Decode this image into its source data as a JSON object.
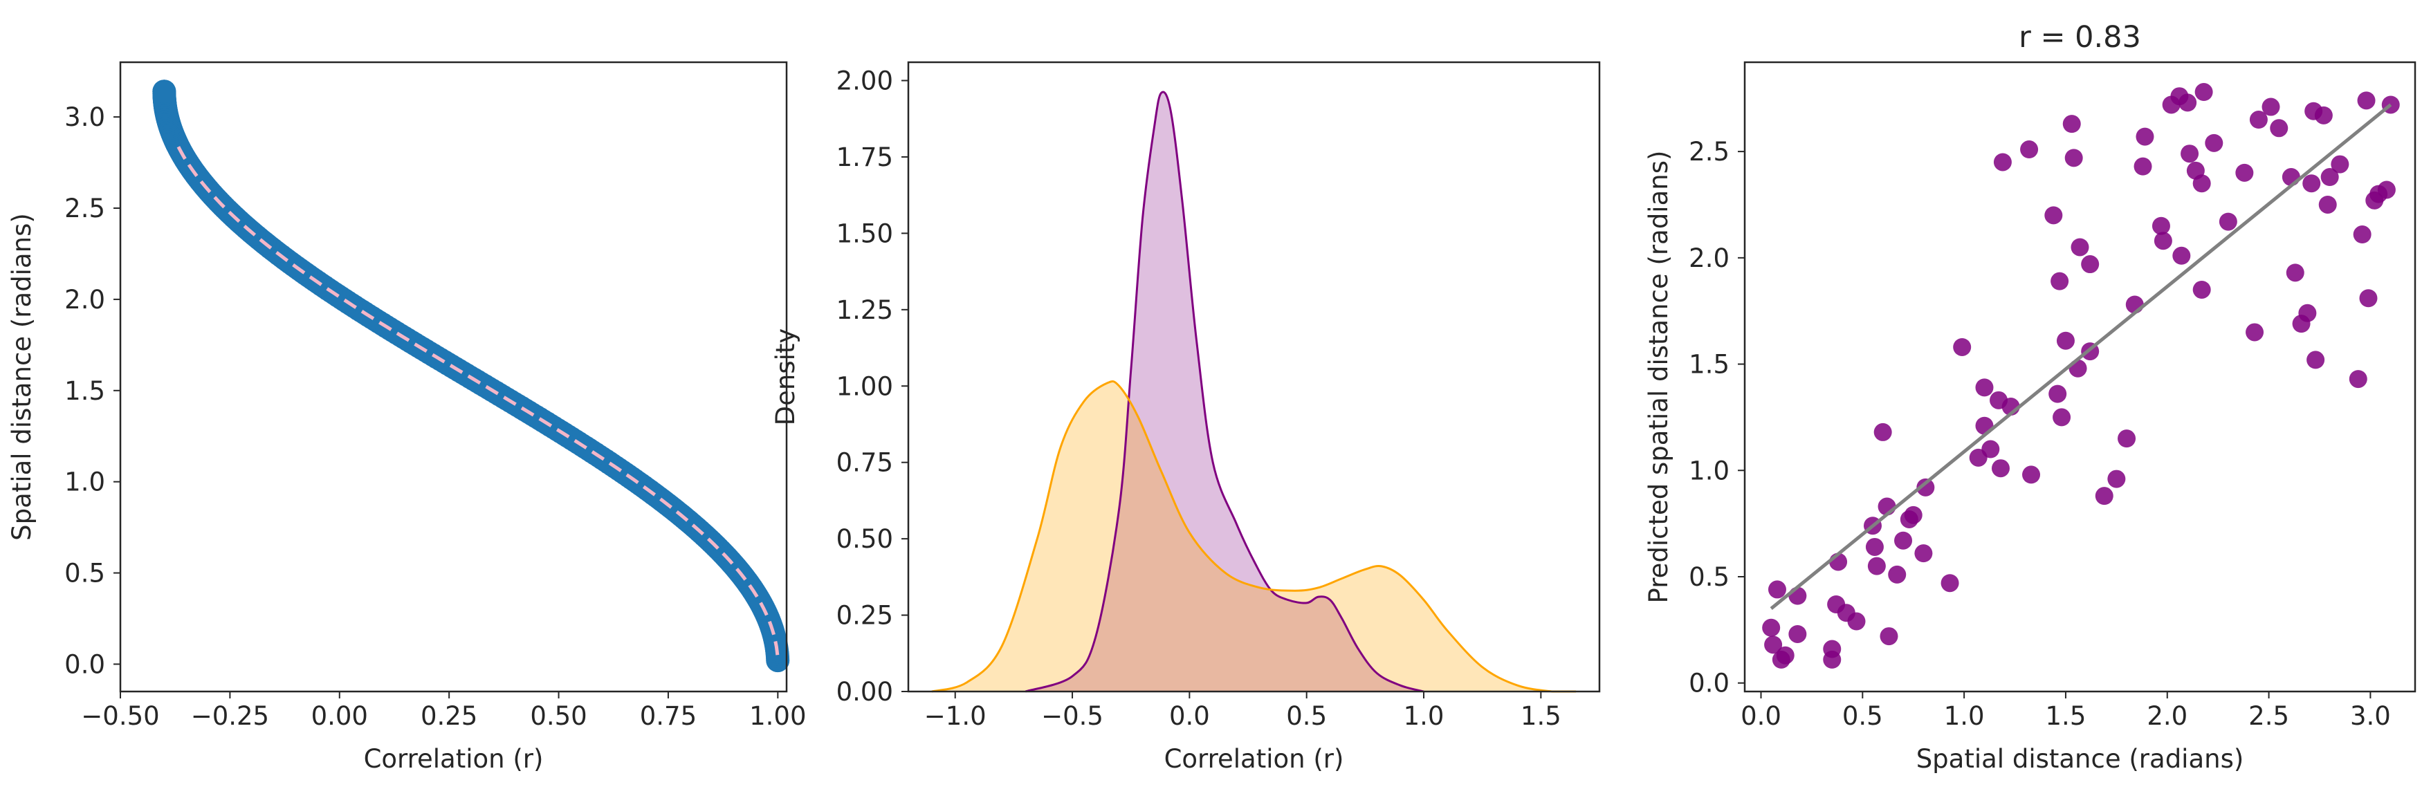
{
  "chart_data": [
    {
      "type": "scatter",
      "xlabel": "Correlation (r)",
      "ylabel": "Spatial distance (radians)",
      "xlim": [
        -0.5,
        1.02
      ],
      "ylim": [
        -0.15,
        3.3
      ],
      "xticks": [
        -0.5,
        -0.25,
        0.0,
        0.25,
        0.5,
        0.75,
        1.0
      ],
      "xtick_labels": [
        "−0.50",
        "−0.25",
        "0.00",
        "0.25",
        "0.50",
        "0.75",
        "1.00"
      ],
      "yticks": [
        0.0,
        0.5,
        1.0,
        1.5,
        2.0,
        2.5,
        3.0
      ],
      "ytick_labels": [
        "0.0",
        "0.5",
        "1.0",
        "1.5",
        "2.0",
        "2.5",
        "3.0"
      ],
      "grid": false,
      "series": [
        {
          "kind": "scatter",
          "color": "#1f77b4",
          "relation": "d = arccos(r) with r = cos(d) * 0.7 + 0.3",
          "d_range": [
            0.02,
            3.14
          ]
        },
        {
          "kind": "dashed-line",
          "color": "#f4b6c8",
          "relation": "d = arccos(r)",
          "d_range": [
            0.05,
            2.85
          ]
        }
      ]
    },
    {
      "type": "area",
      "xlabel": "Correlation (r)",
      "ylabel": "Density",
      "xlim": [
        -1.2,
        1.75
      ],
      "ylim": [
        0,
        2.06
      ],
      "xticks": [
        -1.0,
        -0.5,
        0.0,
        0.5,
        1.0,
        1.5
      ],
      "xtick_labels": [
        "−1.0",
        "−0.5",
        "0.0",
        "0.5",
        "1.0",
        "1.5"
      ],
      "yticks": [
        0.0,
        0.25,
        0.5,
        0.75,
        1.0,
        1.25,
        1.5,
        1.75,
        2.0
      ],
      "ytick_labels": [
        "0.00",
        "0.25",
        "0.50",
        "0.75",
        "1.00",
        "1.25",
        "1.50",
        "1.75",
        "2.00"
      ],
      "grid": false,
      "series": [
        {
          "color": "#800080",
          "fill": "#800080",
          "fill_opacity": 0.25,
          "x": [
            -0.7,
            -0.5,
            -0.4,
            -0.3,
            -0.25,
            -0.2,
            -0.15,
            -0.12,
            -0.08,
            -0.03,
            0.03,
            0.1,
            0.2,
            0.28,
            0.35,
            0.42,
            0.5,
            0.55,
            0.6,
            0.65,
            0.72,
            0.8,
            0.9,
            1.0
          ],
          "y": [
            0.0,
            0.05,
            0.18,
            0.6,
            1.05,
            1.55,
            1.85,
            1.96,
            1.9,
            1.6,
            1.15,
            0.75,
            0.55,
            0.42,
            0.33,
            0.3,
            0.29,
            0.31,
            0.3,
            0.24,
            0.14,
            0.06,
            0.02,
            0.0
          ]
        },
        {
          "color": "#ffa500",
          "fill": "#ffa500",
          "fill_opacity": 0.28,
          "x": [
            -1.1,
            -0.95,
            -0.8,
            -0.65,
            -0.55,
            -0.45,
            -0.35,
            -0.3,
            -0.22,
            -0.12,
            0.0,
            0.15,
            0.3,
            0.45,
            0.55,
            0.65,
            0.75,
            0.82,
            0.9,
            1.0,
            1.1,
            1.25,
            1.4,
            1.55,
            1.65
          ],
          "y": [
            0.0,
            0.03,
            0.15,
            0.5,
            0.8,
            0.95,
            1.01,
            1.0,
            0.9,
            0.72,
            0.52,
            0.39,
            0.34,
            0.33,
            0.34,
            0.37,
            0.4,
            0.41,
            0.38,
            0.3,
            0.2,
            0.08,
            0.02,
            0.0,
            0.0
          ]
        }
      ]
    },
    {
      "type": "scatter",
      "title": "r = 0.83",
      "xlabel": "Spatial distance (radians)",
      "ylabel": "Predicted spatial distance (radians)",
      "xlim": [
        -0.08,
        3.22
      ],
      "ylim": [
        -0.04,
        2.92
      ],
      "xticks": [
        0.0,
        0.5,
        1.0,
        1.5,
        2.0,
        2.5,
        3.0
      ],
      "xtick_labels": [
        "0.0",
        "0.5",
        "1.0",
        "1.5",
        "2.0",
        "2.5",
        "3.0"
      ],
      "yticks": [
        0.0,
        0.5,
        1.0,
        1.5,
        2.0,
        2.5
      ],
      "ytick_labels": [
        "0.0",
        "0.5",
        "1.0",
        "1.5",
        "2.0",
        "2.5"
      ],
      "grid": false,
      "point_color": "#800080",
      "line_color": "#808080",
      "fit_line": {
        "x": [
          0.05,
          3.1
        ],
        "y": [
          0.35,
          2.72
        ]
      },
      "points": [
        [
          0.05,
          0.26
        ],
        [
          0.06,
          0.18
        ],
        [
          0.08,
          0.44
        ],
        [
          0.1,
          0.11
        ],
        [
          0.12,
          0.13
        ],
        [
          0.18,
          0.41
        ],
        [
          0.18,
          0.23
        ],
        [
          0.35,
          0.16
        ],
        [
          0.35,
          0.11
        ],
        [
          0.37,
          0.37
        ],
        [
          0.38,
          0.57
        ],
        [
          0.42,
          0.33
        ],
        [
          0.47,
          0.29
        ],
        [
          0.55,
          0.74
        ],
        [
          0.56,
          0.64
        ],
        [
          0.57,
          0.55
        ],
        [
          0.6,
          1.18
        ],
        [
          0.62,
          0.83
        ],
        [
          0.63,
          0.22
        ],
        [
          0.67,
          0.51
        ],
        [
          0.7,
          0.67
        ],
        [
          0.73,
          0.77
        ],
        [
          0.75,
          0.79
        ],
        [
          0.8,
          0.61
        ],
        [
          0.81,
          0.92
        ],
        [
          0.93,
          0.47
        ],
        [
          0.99,
          1.58
        ],
        [
          1.07,
          1.06
        ],
        [
          1.1,
          1.39
        ],
        [
          1.1,
          1.21
        ],
        [
          1.13,
          1.1
        ],
        [
          1.17,
          1.33
        ],
        [
          1.18,
          1.01
        ],
        [
          1.19,
          2.45
        ],
        [
          1.23,
          1.3
        ],
        [
          1.32,
          2.51
        ],
        [
          1.33,
          0.98
        ],
        [
          1.44,
          2.2
        ],
        [
          1.46,
          1.36
        ],
        [
          1.47,
          1.89
        ],
        [
          1.48,
          1.25
        ],
        [
          1.5,
          1.61
        ],
        [
          1.53,
          2.63
        ],
        [
          1.54,
          2.47
        ],
        [
          1.56,
          1.48
        ],
        [
          1.57,
          2.05
        ],
        [
          1.62,
          1.97
        ],
        [
          1.62,
          1.56
        ],
        [
          1.69,
          0.88
        ],
        [
          1.75,
          0.96
        ],
        [
          1.8,
          1.15
        ],
        [
          1.84,
          1.78
        ],
        [
          1.88,
          2.43
        ],
        [
          1.89,
          2.57
        ],
        [
          1.97,
          2.15
        ],
        [
          1.98,
          2.08
        ],
        [
          2.02,
          2.72
        ],
        [
          2.06,
          2.76
        ],
        [
          2.07,
          2.01
        ],
        [
          2.1,
          2.73
        ],
        [
          2.11,
          2.49
        ],
        [
          2.14,
          2.41
        ],
        [
          2.17,
          1.85
        ],
        [
          2.17,
          2.35
        ],
        [
          2.18,
          2.78
        ],
        [
          2.23,
          2.54
        ],
        [
          2.3,
          2.17
        ],
        [
          2.38,
          2.4
        ],
        [
          2.43,
          1.65
        ],
        [
          2.45,
          2.65
        ],
        [
          2.51,
          2.71
        ],
        [
          2.55,
          2.61
        ],
        [
          2.61,
          2.38
        ],
        [
          2.63,
          1.93
        ],
        [
          2.66,
          1.69
        ],
        [
          2.69,
          1.74
        ],
        [
          2.71,
          2.35
        ],
        [
          2.72,
          2.69
        ],
        [
          2.73,
          1.52
        ],
        [
          2.77,
          2.67
        ],
        [
          2.79,
          2.25
        ],
        [
          2.8,
          2.38
        ],
        [
          2.85,
          2.44
        ],
        [
          2.94,
          1.43
        ],
        [
          2.96,
          2.11
        ],
        [
          2.98,
          2.74
        ],
        [
          2.99,
          1.81
        ],
        [
          3.02,
          2.27
        ],
        [
          3.04,
          2.3
        ],
        [
          3.08,
          2.32
        ],
        [
          3.1,
          2.72
        ]
      ]
    }
  ]
}
